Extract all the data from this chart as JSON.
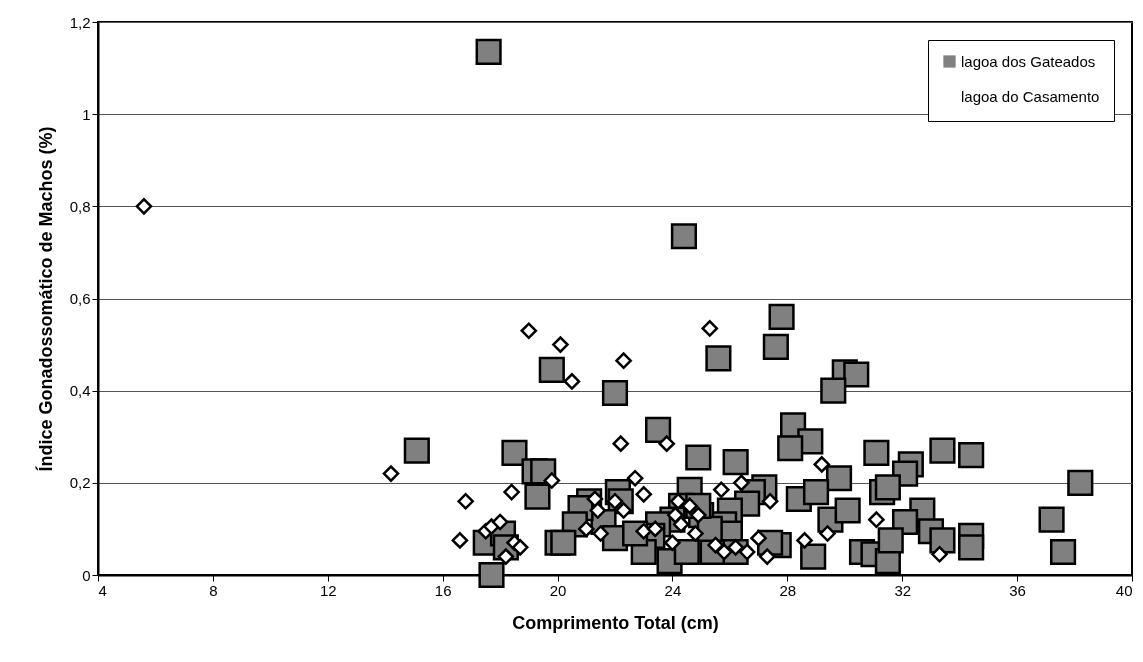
{
  "chart_data": {
    "type": "scatter",
    "xlabel": "Comprimento Total (cm)",
    "ylabel": "Índice Gonadossomático de Machos (%)",
    "xlim": [
      4,
      40
    ],
    "xticks": [
      4,
      8,
      12,
      16,
      20,
      24,
      28,
      32,
      36,
      40
    ],
    "ylim": [
      0,
      1.2
    ],
    "yticks": [
      {
        "value": 0,
        "label": "0"
      },
      {
        "value": 0.2,
        "label": "0,2"
      },
      {
        "value": 0.4,
        "label": "0,4"
      },
      {
        "value": 0.6,
        "label": "0,6"
      },
      {
        "value": 0.8,
        "label": "0,8"
      },
      {
        "value": 1,
        "label": "1"
      },
      {
        "value": 1.2,
        "label": "1,2"
      }
    ],
    "grid": "y",
    "legend": "top right",
    "series": [
      {
        "name": "lagoa dos Gateados",
        "color": "#808080",
        "marker": "square",
        "x": [
          17.6,
          24.4,
          27.8,
          25.6,
          27.6,
          19.8,
          30.0,
          30.4,
          29.6,
          22.0,
          15.1,
          18.5,
          19.2,
          19.5,
          19.3,
          23.5,
          28.2,
          28.8,
          28.1,
          24.9,
          26.2,
          31.1,
          33.4,
          34.4,
          32.3,
          32.1,
          29.8,
          28.4,
          29.0,
          29.5,
          30.1,
          31.3,
          31.5,
          32.7,
          32.1,
          33.0,
          33.4,
          34.4,
          34.4,
          30.6,
          31.0,
          31.5,
          31.6,
          28.9,
          27.7,
          27.4,
          37.2,
          37.6,
          38.2,
          27.2,
          26.8,
          26.6,
          26.0,
          25.8,
          26.0,
          25.4,
          26.2,
          24.6,
          24.3,
          24.0,
          23.5,
          23.3,
          23.0,
          23.9,
          24.5,
          22.1,
          22.2,
          21.6,
          22.0,
          21.1,
          20.8,
          20.6,
          20.0,
          20.2,
          17.5,
          17.7,
          18.1,
          18.2,
          25.0,
          25.3,
          24.9,
          22.7
        ],
        "values": [
          1.135,
          0.735,
          0.56,
          0.47,
          0.495,
          0.445,
          0.44,
          0.435,
          0.4,
          0.395,
          0.27,
          0.265,
          0.225,
          0.225,
          0.17,
          0.315,
          0.325,
          0.29,
          0.275,
          0.255,
          0.245,
          0.265,
          0.27,
          0.26,
          0.24,
          0.22,
          0.21,
          0.165,
          0.18,
          0.12,
          0.14,
          0.18,
          0.19,
          0.14,
          0.115,
          0.095,
          0.075,
          0.085,
          0.06,
          0.05,
          0.045,
          0.03,
          0.075,
          0.04,
          0.065,
          0.07,
          0.12,
          0.05,
          0.2,
          0.19,
          0.18,
          0.155,
          0.14,
          0.11,
          0.09,
          0.05,
          0.05,
          0.185,
          0.15,
          0.12,
          0.11,
          0.085,
          0.05,
          0.03,
          0.05,
          0.18,
          0.16,
          0.115,
          0.08,
          0.16,
          0.145,
          0.11,
          0.07,
          0.07,
          0.07,
          0.0,
          0.09,
          0.06,
          0.13,
          0.1,
          0.15,
          0.09
        ]
      },
      {
        "name": "lagoa do Casamento",
        "color": "#ffffff",
        "marker": "diamond",
        "x": [
          5.6,
          14.2,
          16.6,
          16.8,
          17.5,
          17.7,
          18.0,
          18.2,
          18.4,
          18.5,
          18.7,
          19.0,
          19.8,
          20.1,
          20.5,
          21.0,
          21.3,
          21.4,
          21.5,
          22.0,
          22.2,
          22.3,
          22.3,
          22.7,
          23.0,
          23.0,
          23.4,
          23.8,
          24.0,
          24.1,
          24.2,
          24.3,
          24.6,
          24.8,
          24.9,
          25.3,
          25.5,
          25.7,
          25.8,
          26.2,
          26.4,
          26.6,
          27.0,
          27.3,
          27.4,
          28.6,
          29.2,
          29.4,
          31.1,
          33.3
        ],
        "values": [
          0.8,
          0.22,
          0.075,
          0.16,
          0.095,
          0.105,
          0.115,
          0.04,
          0.18,
          0.07,
          0.06,
          0.53,
          0.205,
          0.5,
          0.42,
          0.1,
          0.165,
          0.14,
          0.09,
          0.16,
          0.285,
          0.465,
          0.14,
          0.21,
          0.175,
          0.095,
          0.1,
          0.285,
          0.07,
          0.13,
          0.16,
          0.11,
          0.15,
          0.09,
          0.13,
          0.535,
          0.065,
          0.185,
          0.05,
          0.06,
          0.2,
          0.05,
          0.08,
          0.04,
          0.16,
          0.075,
          0.24,
          0.09,
          0.12,
          0.045
        ]
      }
    ]
  }
}
